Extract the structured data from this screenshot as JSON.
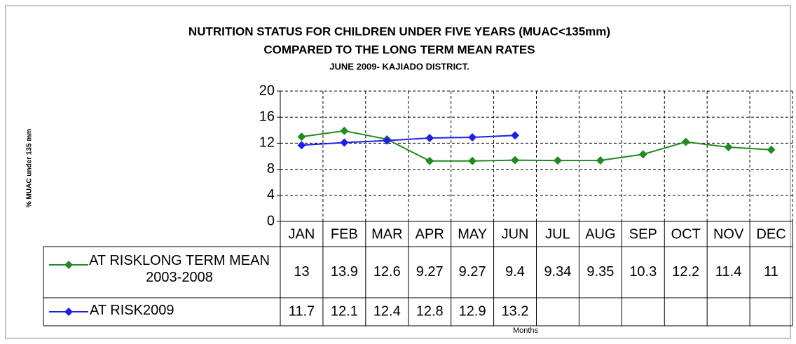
{
  "chart_data": {
    "type": "line",
    "title": "NUTRITION STATUS FOR CHILDREN UNDER FIVE YEARS (MUAC<135mm)",
    "subtitle": "COMPARED TO THE LONG TERM MEAN RATES",
    "subtitle2": "JUNE 2009- KAJIADO DISTRICT.",
    "x_label": "Months",
    "y_label": "% MUAC under 135 mm",
    "categories": [
      "JAN",
      "FEB",
      "MAR",
      "APR",
      "MAY",
      "JUN",
      "JUL",
      "AUG",
      "SEP",
      "OCT",
      "NOV",
      "DEC"
    ],
    "series": [
      {
        "name": "AT RISKLONG TERM MEAN 2003-2008",
        "color": "#218a21",
        "values": [
          13,
          13.9,
          12.6,
          9.27,
          9.27,
          9.4,
          9.34,
          9.35,
          10.3,
          12.2,
          11.4,
          11
        ]
      },
      {
        "name": "AT RISK2009",
        "color": "#1f1fe6",
        "values": [
          11.7,
          12.1,
          12.4,
          12.8,
          12.9,
          13.2,
          null,
          null,
          null,
          null,
          null,
          null
        ]
      }
    ],
    "ylim": [
      0,
      20
    ],
    "yticks": [
      0,
      4,
      8,
      12,
      16,
      20
    ],
    "grid": true
  }
}
